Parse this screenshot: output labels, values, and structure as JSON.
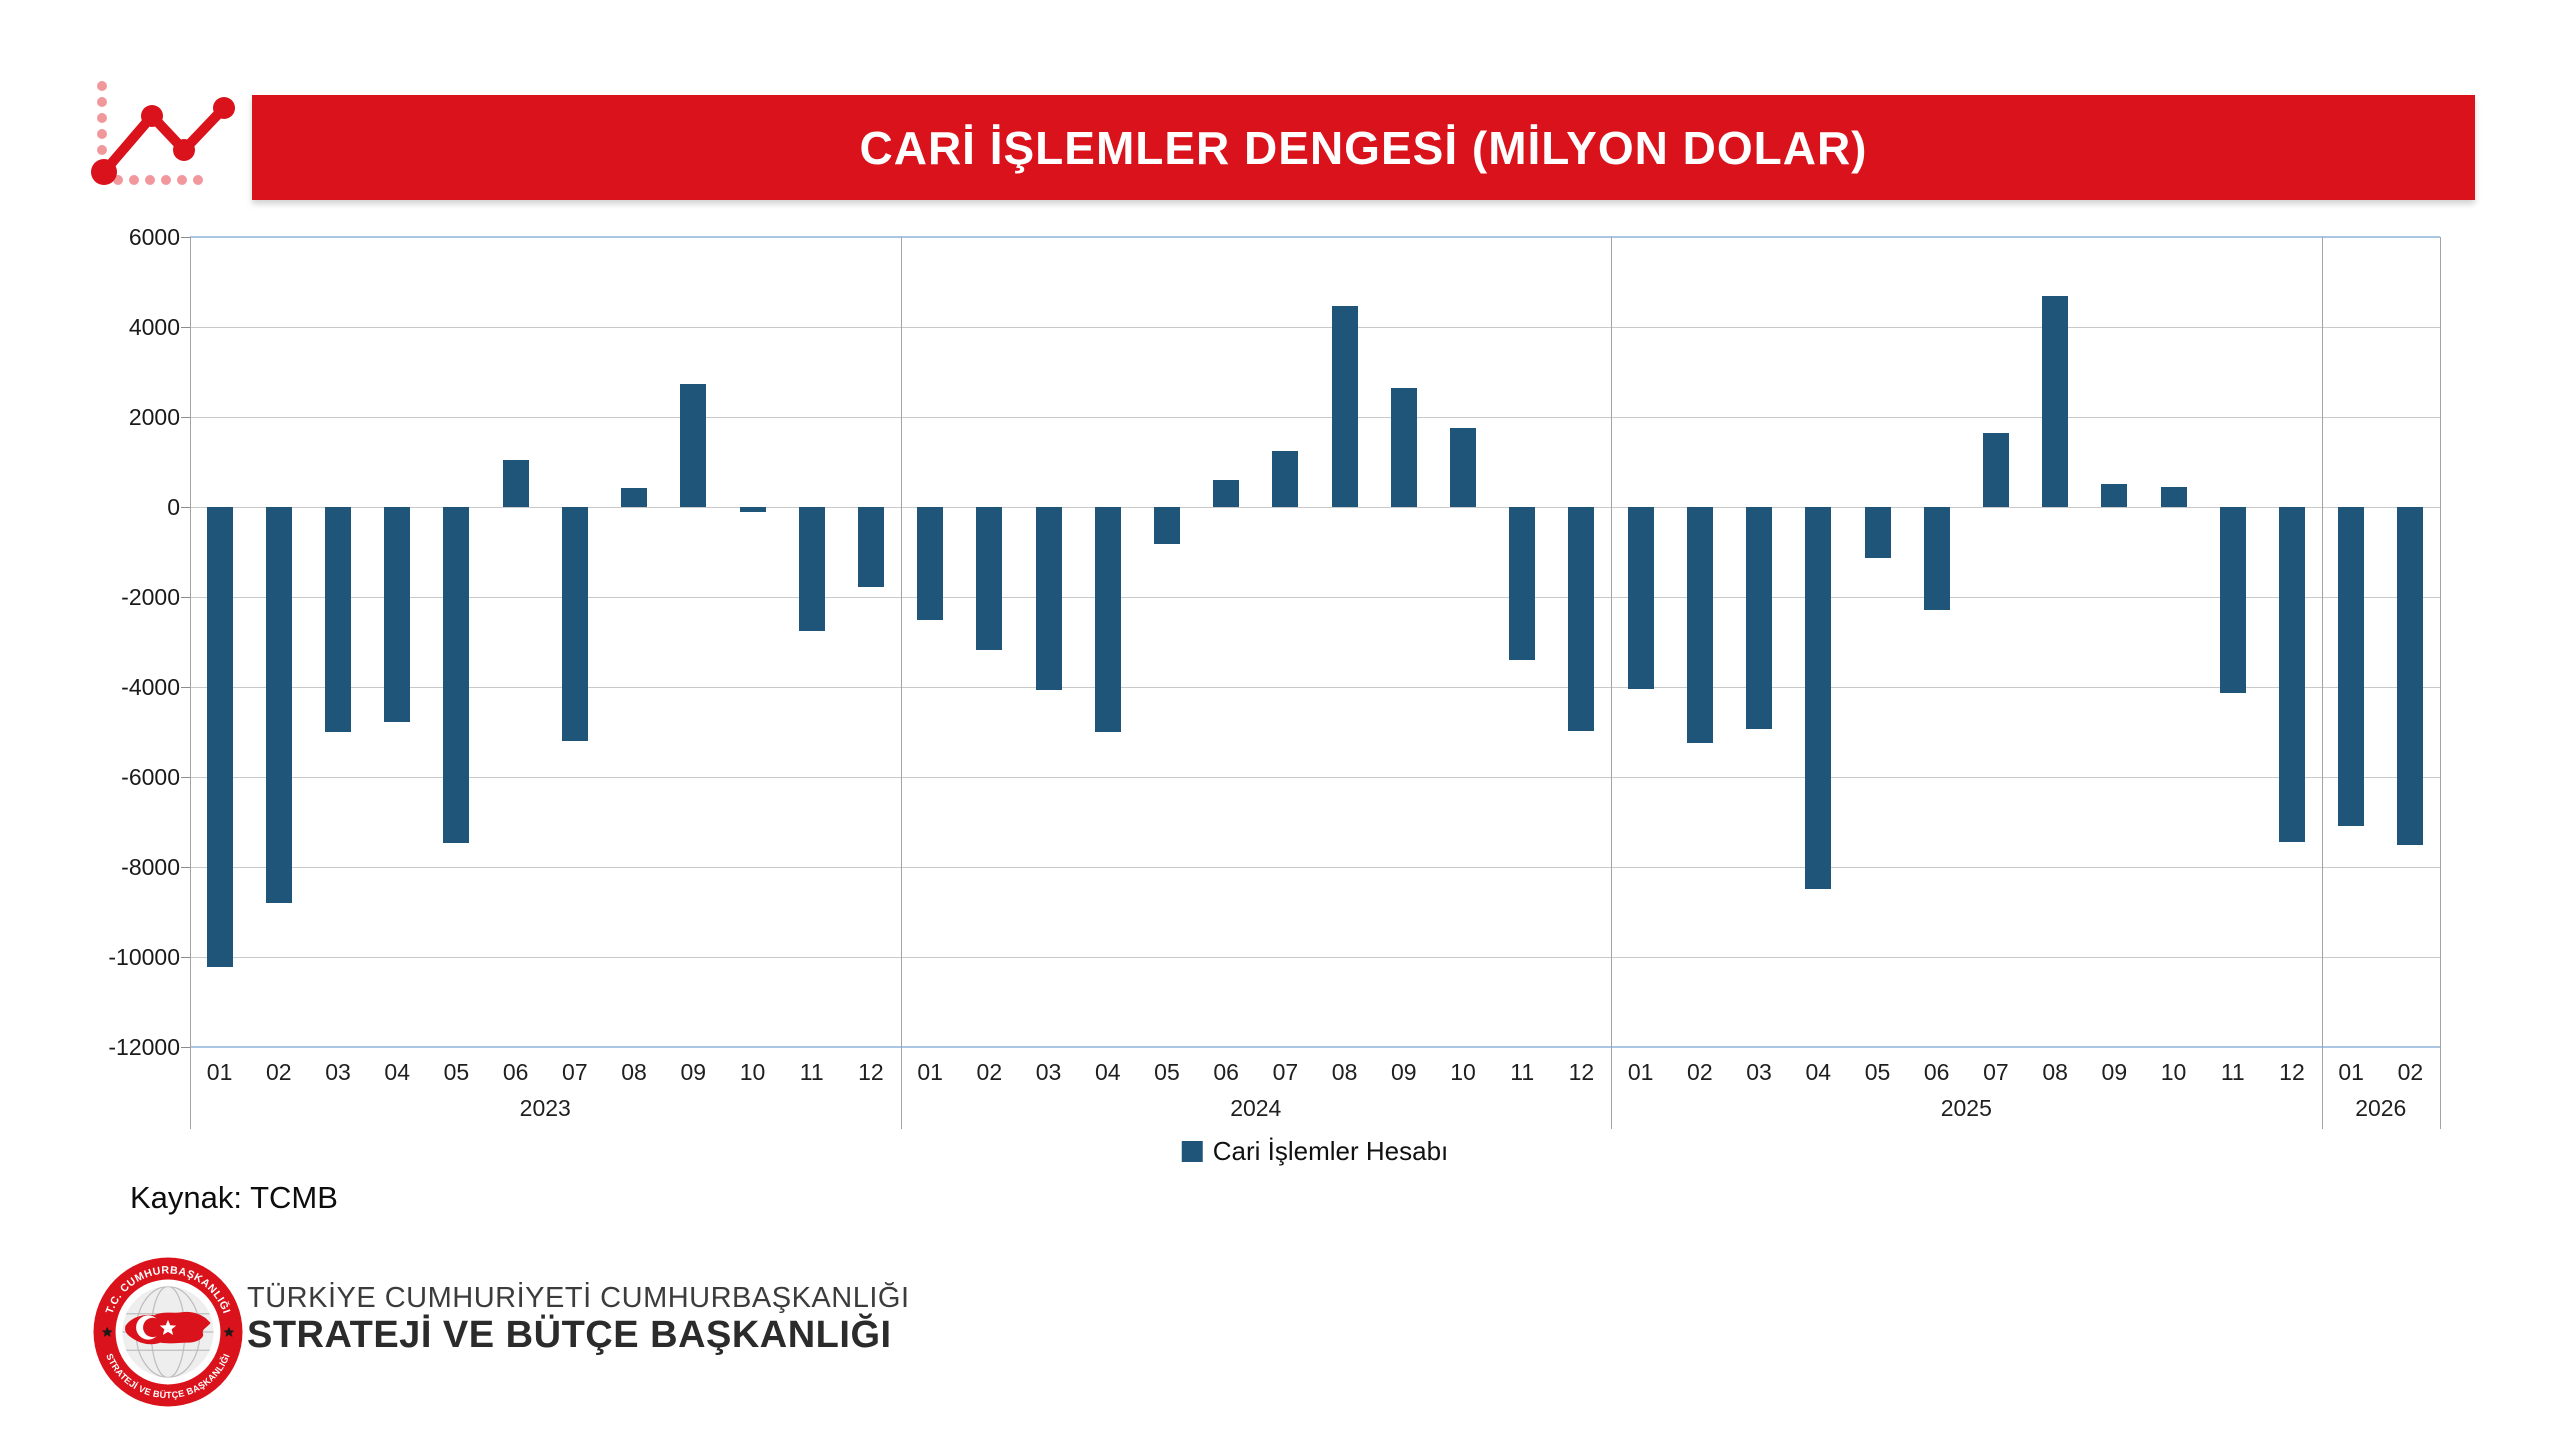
{
  "header": {
    "title": "CARİ İŞLEMLER DENGESİ (MİLYON DOLAR)"
  },
  "legend": {
    "label": "Cari İşlemler Hesabı"
  },
  "source": {
    "label": "Kaynak: TCMB"
  },
  "footer": {
    "org_line1": "TÜRKİYE CUMHURİYETİ CUMHURBAŞKANLIĞI",
    "org_line2": "STRATEJİ VE BÜTÇE BAŞKANLIĞI",
    "emblem_top_text": "T.C. CUMHURBAŞKANLIĞI",
    "emblem_bottom_text": "STRATEJİ VE BÜTÇE BAŞKANLIĞI"
  },
  "colors": {
    "banner_red": "#D9121B",
    "bar_blue": "#1F5578",
    "gridline_gray": "#C9C9C9",
    "frame_blue": "#A9C6E2"
  },
  "chart_data": {
    "type": "bar",
    "title": "CARİ İŞLEMLER DENGESİ (MİLYON DOLAR)",
    "series_name": "Cari İşlemler Hesabı",
    "xlabel": "",
    "ylabel": "",
    "ylim": [
      -12000,
      6000
    ],
    "y_ticks": [
      6000,
      4000,
      2000,
      0,
      -2000,
      -4000,
      -6000,
      -8000,
      -10000,
      -12000
    ],
    "grid": true,
    "legend_position": "bottom",
    "groups": [
      {
        "year": "2023",
        "months": [
          "01",
          "02",
          "03",
          "04",
          "05",
          "06",
          "07",
          "08",
          "09",
          "10",
          "11",
          "12"
        ],
        "values": [
          -10230,
          -8790,
          -5010,
          -4780,
          -7470,
          1050,
          -5190,
          420,
          2730,
          -100,
          -2760,
          -1780
        ]
      },
      {
        "year": "2024",
        "months": [
          "01",
          "02",
          "03",
          "04",
          "05",
          "06",
          "07",
          "08",
          "09",
          "10",
          "11",
          "12"
        ],
        "values": [
          -2500,
          -3170,
          -4060,
          -5010,
          -830,
          600,
          1240,
          4470,
          2640,
          1750,
          -3390,
          -4970
        ]
      },
      {
        "year": "2025",
        "months": [
          "01",
          "02",
          "03",
          "04",
          "05",
          "06",
          "07",
          "08",
          "09",
          "10",
          "11",
          "12"
        ],
        "values": [
          -4050,
          -5250,
          -4930,
          -8490,
          -1130,
          -2280,
          1640,
          4700,
          520,
          450,
          -4140,
          -7440
        ]
      },
      {
        "year": "2026",
        "months": [
          "01",
          "02"
        ],
        "values": [
          -7080,
          -7520
        ]
      }
    ]
  }
}
